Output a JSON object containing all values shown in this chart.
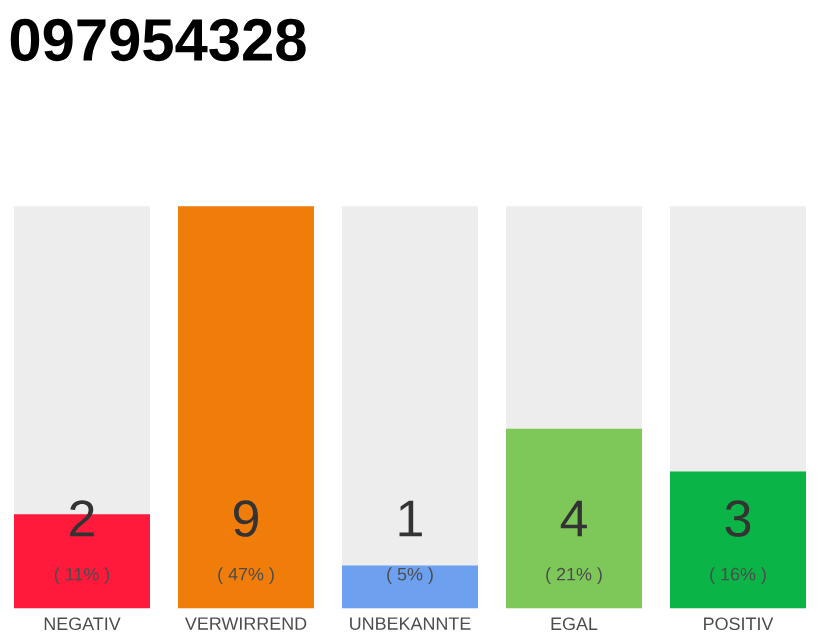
{
  "chart_data": {
    "type": "bar",
    "title": "097954328",
    "categories": [
      "NEGATIV",
      "VERWIRREND",
      "UNBEKANNTE",
      "EGAL",
      "POSITIV"
    ],
    "values": [
      11,
      47,
      5,
      21,
      16
    ],
    "colors": [
      "#ff1a3c",
      "#f07d0a",
      "#6ea0f0",
      "#7ec85a",
      "#0ab446"
    ],
    "value_labels": [
      "( 11% )",
      "( 47% )",
      "( 5% )",
      "( 21% )",
      "( 16% )"
    ],
    "annotations": [
      "2",
      "9",
      "1",
      "4",
      "3"
    ],
    "tick_labels": "x"
  }
}
